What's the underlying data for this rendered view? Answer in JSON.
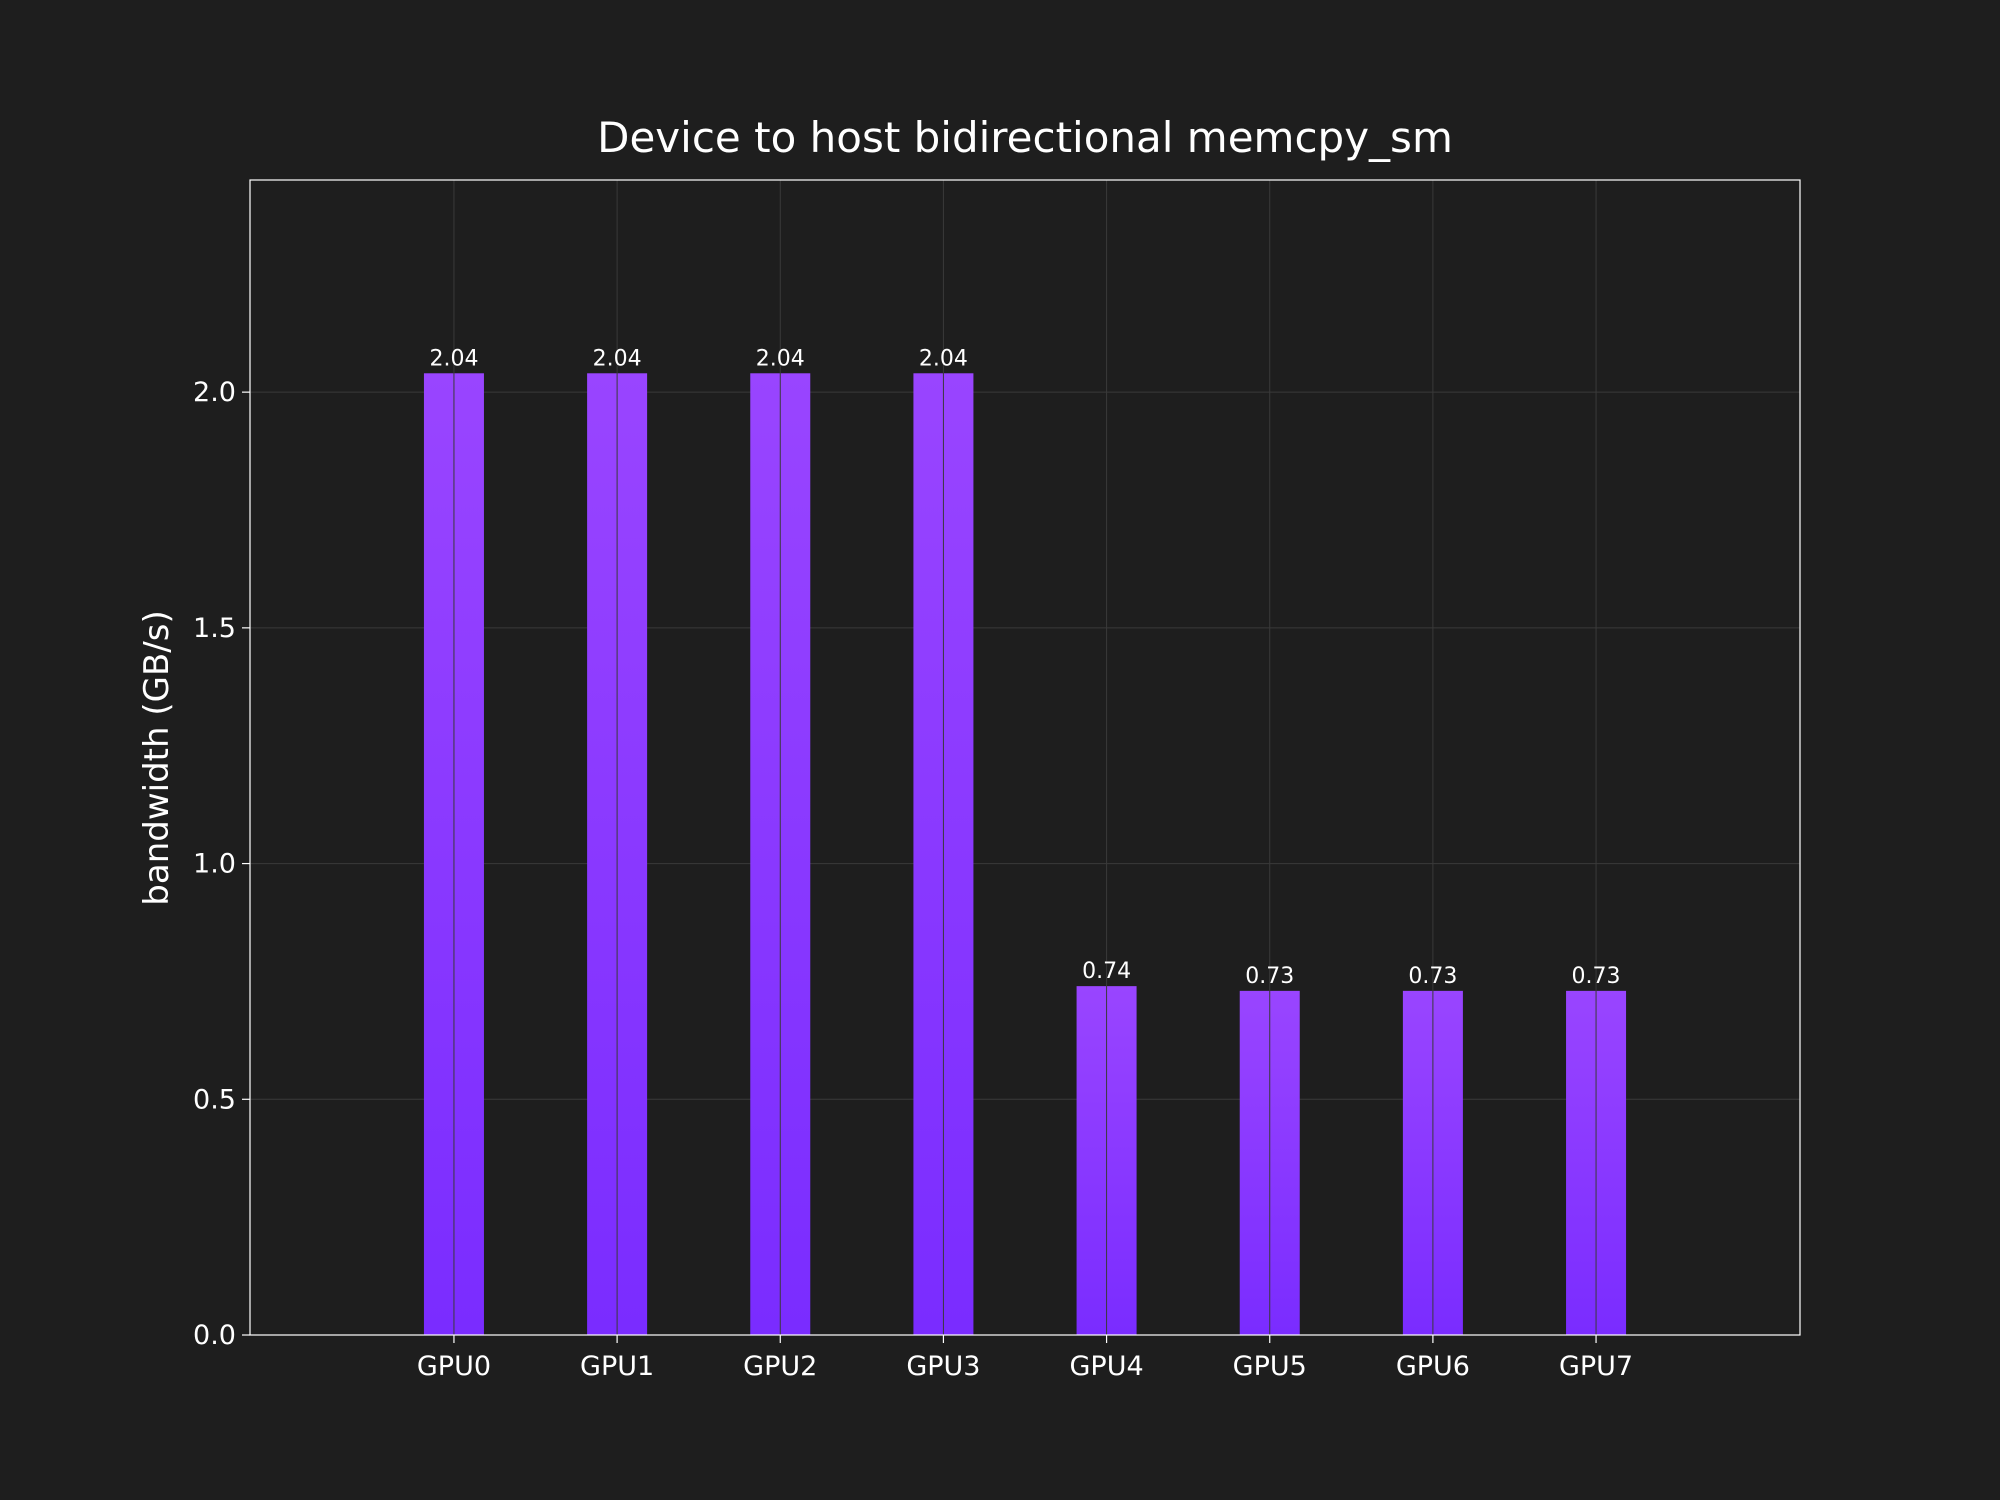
{
  "chart_data": {
    "type": "bar",
    "title": "Device to host bidirectional memcpy_sm",
    "xlabel": "",
    "ylabel": "bandwidth (GB/s)",
    "categories": [
      "GPU0",
      "GPU1",
      "GPU2",
      "GPU3",
      "GPU4",
      "GPU5",
      "GPU6",
      "GPU7"
    ],
    "values": [
      2.04,
      2.04,
      2.04,
      2.04,
      0.74,
      0.73,
      0.73,
      0.73
    ],
    "value_labels": [
      "2.04",
      "2.04",
      "2.04",
      "2.04",
      "0.74",
      "0.73",
      "0.73",
      "0.73"
    ],
    "ylim": [
      0,
      2.45
    ],
    "yticks": [
      0.0,
      0.5,
      1.0,
      1.5,
      2.0
    ],
    "ytick_labels": [
      "0.0",
      "0.5",
      "1.0",
      "1.5",
      "2.0"
    ],
    "grid": true,
    "legend": "none",
    "colors": {
      "background": "#1e1e1e",
      "bar_top": "#9945ff",
      "bar_bottom": "#7a2cff",
      "text": "#ffffff",
      "grid": "#3a3a3a"
    }
  }
}
